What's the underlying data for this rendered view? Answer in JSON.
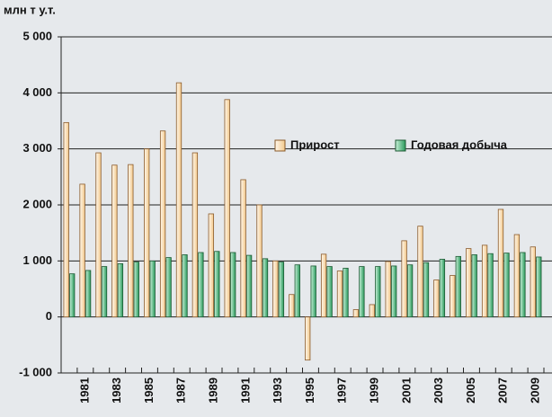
{
  "chart_data": {
    "type": "bar",
    "y_axis_label": "млн т у.т.",
    "categories": [
      null,
      "1981",
      null,
      "1983",
      null,
      "1985",
      null,
      "1987",
      null,
      "1989",
      null,
      "1991",
      null,
      "1993",
      null,
      "1995",
      null,
      "1997",
      null,
      "1999",
      null,
      "2001",
      null,
      "2003",
      null,
      "2005",
      null,
      "2007",
      null,
      "2009"
    ],
    "series": [
      {
        "name": "Прирост",
        "color": "#fde7c4",
        "stroke": "#8a5a2a",
        "values": [
          3470,
          2370,
          2930,
          2710,
          2720,
          3000,
          3320,
          4180,
          2930,
          1840,
          3880,
          2450,
          2000,
          1000,
          400,
          -770,
          1120,
          820,
          130,
          220,
          990,
          1360,
          1620,
          660,
          740,
          1220,
          1280,
          1920,
          1470,
          1250
        ]
      },
      {
        "name": "Годовая добыча",
        "color": "#3cb878",
        "stroke": "#1d5a34",
        "values": [
          770,
          830,
          900,
          950,
          980,
          1000,
          1060,
          1110,
          1150,
          1170,
          1150,
          1100,
          1040,
          980,
          930,
          910,
          900,
          870,
          900,
          900,
          910,
          930,
          970,
          1030,
          1080,
          1110,
          1130,
          1140,
          1150,
          1070
        ]
      }
    ],
    "ylim": [
      -1000,
      5000
    ],
    "yticks": [
      {
        "value": -1000,
        "label": "-1 000"
      },
      0,
      {
        "value": 1000,
        "label": "1 000"
      },
      {
        "value": 2000,
        "label": "2 000"
      },
      {
        "value": 3000,
        "label": "3 000"
      },
      {
        "value": 4000,
        "label": "4 000"
      },
      {
        "value": 5000,
        "label": "5 000"
      }
    ],
    "grid": true
  }
}
